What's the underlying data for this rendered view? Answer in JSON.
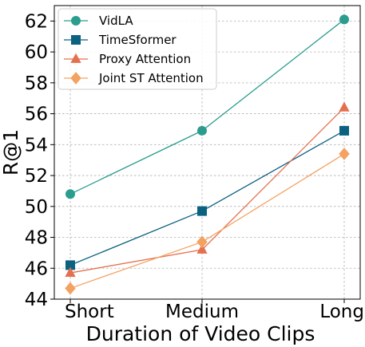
{
  "chart_data": {
    "type": "line",
    "categories": [
      "Short",
      "Medium",
      "Long"
    ],
    "xlabel": "Duration of Video Clips",
    "ylabel": "R@1",
    "ylim": [
      44,
      63
    ],
    "yticks": [
      44,
      46,
      48,
      50,
      52,
      54,
      56,
      58,
      60,
      62
    ],
    "grid": true,
    "legend": "top-left",
    "series": [
      {
        "name": "VidLA",
        "values": [
          50.8,
          54.9,
          62.1
        ],
        "color": "#2a9d8f",
        "marker": "circle"
      },
      {
        "name": "TimeSformer",
        "values": [
          46.2,
          49.7,
          54.9
        ],
        "color": "#0b6180",
        "marker": "square"
      },
      {
        "name": "Proxy Attention",
        "values": [
          45.7,
          47.2,
          56.4
        ],
        "color": "#e4704f",
        "marker": "triangle"
      },
      {
        "name": "Joint ST Attention",
        "values": [
          44.7,
          47.7,
          53.4
        ],
        "color": "#f4a261",
        "marker": "diamond"
      }
    ]
  }
}
